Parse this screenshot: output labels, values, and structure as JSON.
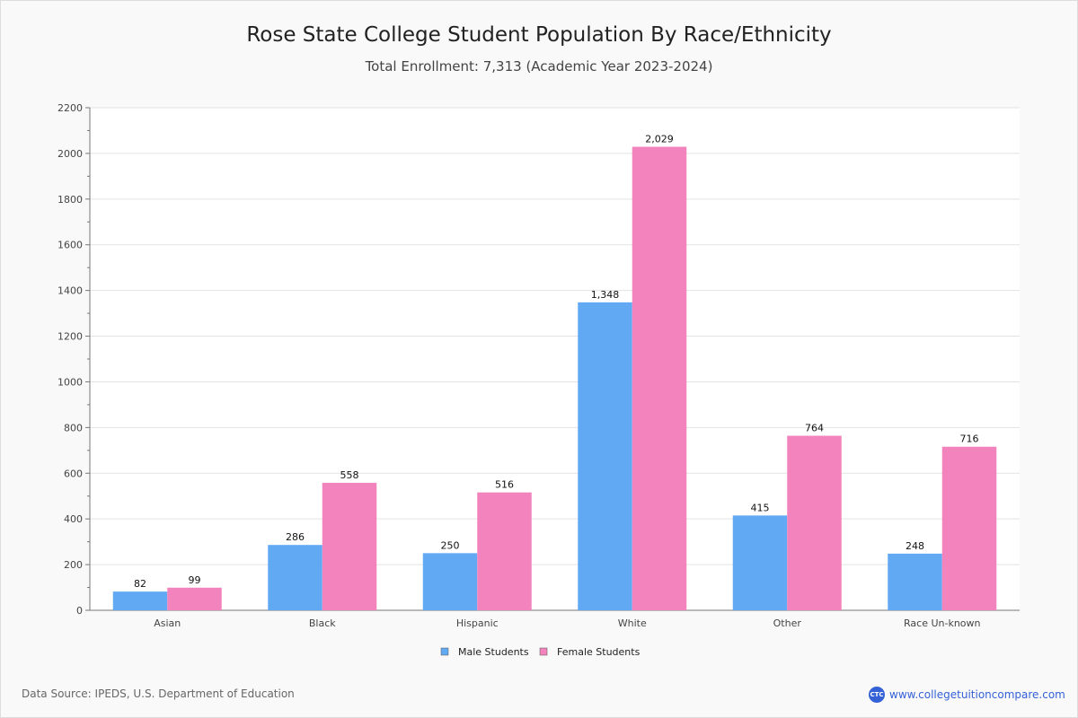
{
  "chart_data": {
    "type": "bar",
    "title": "Rose State College Student Population By Race/Ethnicity",
    "subtitle": "Total Enrollment: 7,313 (Academic Year 2023-2024)",
    "categories": [
      "Asian",
      "Black",
      "Hispanic",
      "White",
      "Other",
      "Race Un-known"
    ],
    "series": [
      {
        "name": "Male Students",
        "color": "#62a9f3",
        "values": [
          82,
          286,
          250,
          1348,
          415,
          248
        ],
        "labels": [
          "82",
          "286",
          "250",
          "1,348",
          "415",
          "248"
        ]
      },
      {
        "name": "Female Students",
        "color": "#f283bc",
        "values": [
          99,
          558,
          516,
          2029,
          764,
          716
        ],
        "labels": [
          "99",
          "558",
          "516",
          "2,029",
          "764",
          "716"
        ]
      }
    ],
    "ylim": [
      0,
      2200
    ],
    "yticks": [
      0,
      200,
      400,
      600,
      800,
      1000,
      1200,
      1400,
      1600,
      1800,
      2000,
      2200
    ],
    "grid": true,
    "legend": "bottom-center"
  },
  "footer": {
    "source": "Data Source: IPEDS, U.S. Department of Education",
    "logo_text": "CTC",
    "site": "www.collegetuitioncompare.com"
  }
}
